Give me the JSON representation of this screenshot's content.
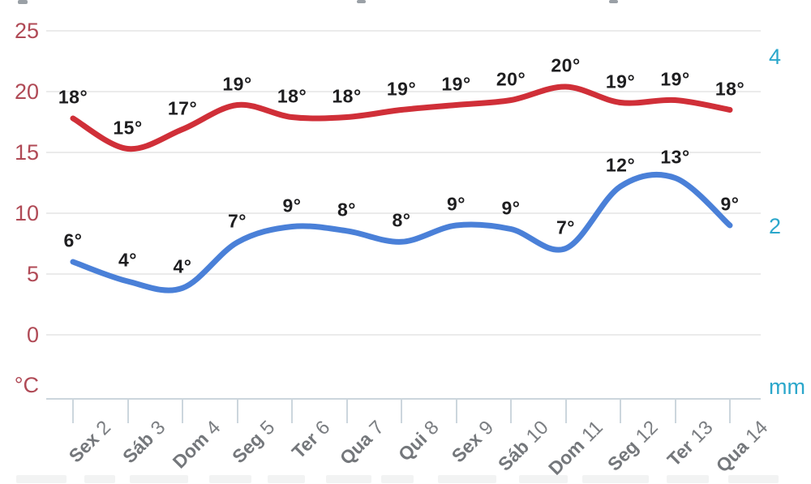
{
  "chart_data": {
    "type": "line",
    "title": "",
    "categories": [
      "Sex 2",
      "Sáb 3",
      "Dom 4",
      "Seg 5",
      "Ter 6",
      "Qua 7",
      "Qui 8",
      "Sex 9",
      "Sáb 10",
      "Dom 11",
      "Seg 12",
      "Ter 13",
      "Qua 14"
    ],
    "categories_parts": [
      [
        "Sex",
        "2"
      ],
      [
        "Sáb",
        "3"
      ],
      [
        "Dom",
        "4"
      ],
      [
        "Seg",
        "5"
      ],
      [
        "Ter",
        "6"
      ],
      [
        "Qua",
        "7"
      ],
      [
        "Qui",
        "8"
      ],
      [
        "Sex",
        "9"
      ],
      [
        "Sáb",
        "10"
      ],
      [
        "Dom",
        "11"
      ],
      [
        "Seg",
        "12"
      ],
      [
        "Ter",
        "13"
      ],
      [
        "Qua",
        "14"
      ]
    ],
    "series": [
      {
        "name": "temperatura-maxima",
        "color": "#d02f38",
        "values": [
          18,
          15,
          17,
          19,
          18,
          18,
          19,
          19,
          20,
          20,
          19,
          19,
          18
        ],
        "point_labels": [
          "18°",
          "15°",
          "17°",
          "19°",
          "18°",
          "18°",
          "19°",
          "19°",
          "20°",
          "20°",
          "19°",
          "19°",
          "18°"
        ],
        "values_curve": [
          17.8,
          15.3,
          16.9,
          18.9,
          17.9,
          17.9,
          18.5,
          18.9,
          19.3,
          20.4,
          19.1,
          19.3,
          18.5
        ]
      },
      {
        "name": "temperatura-minima",
        "color": "#4a80d8",
        "values": [
          6,
          4,
          4,
          7,
          9,
          8,
          8,
          9,
          9,
          7,
          12,
          13,
          9
        ],
        "point_labels": [
          "6°",
          "4°",
          "4°",
          "7°",
          "9°",
          "8°",
          "8°",
          "9°",
          "9°",
          "7°",
          "12°",
          "13°",
          "9°"
        ],
        "values_curve": [
          6.0,
          4.4,
          3.85,
          7.6,
          8.9,
          8.55,
          7.65,
          9.0,
          8.7,
          7.1,
          12.2,
          12.9,
          9.0
        ]
      }
    ],
    "y_axis_left": {
      "unit": "°C",
      "tick_labels": [
        "25",
        "20",
        "15",
        "10",
        "5",
        "0"
      ],
      "tick_values": [
        25,
        20,
        15,
        10,
        5,
        0
      ],
      "color": "#b04a56",
      "range": [
        0,
        25
      ]
    },
    "y_axis_right": {
      "unit": "mm",
      "tick_labels": [
        "4",
        "2"
      ],
      "tick_values": [
        4,
        2
      ],
      "color": "#2ba7cb",
      "range": [
        0,
        4
      ]
    },
    "grid": true,
    "legend_position": "none",
    "x_label_rotation_deg": -45
  },
  "colors": {
    "max_line": "#d02f38",
    "min_line": "#4a80d8",
    "left_axis_text": "#b04a56",
    "right_axis_text": "#2ba7cb",
    "x_axis_text": "#74777b",
    "point_label_text": "#1e1e20",
    "gridline": "#ebebeb",
    "axis_line": "#ccd6dd"
  }
}
